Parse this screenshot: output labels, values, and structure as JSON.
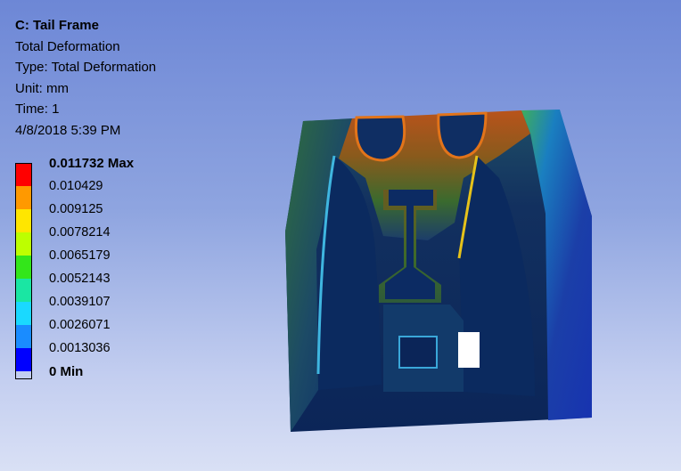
{
  "result_info": {
    "title": "C: Tail Frame",
    "result_name": "Total Deformation",
    "type": "Type: Total Deformation",
    "unit": "Unit: mm",
    "time": "Time: 1",
    "timestamp": "4/8/2018 5:39 PM"
  },
  "legend": {
    "max_label": "0.011732 Max",
    "levels": [
      "0.010429",
      "0.009125",
      "0.0078214",
      "0.0065179",
      "0.0052143",
      "0.0039107",
      "0.0026071",
      "0.0013036"
    ],
    "min_label": "0 Min",
    "colors": [
      "#ff0000",
      "#ff9900",
      "#ffe600",
      "#bdff00",
      "#33e61a",
      "#1ae6a3",
      "#1ad9ff",
      "#1a8cff",
      "#0000ff"
    ]
  },
  "colors": {
    "background_top": "#6d87d6",
    "background_bottom": "#d9e0f5",
    "model_base": "#0a2a6b",
    "model_hot": "#b24a1a"
  }
}
